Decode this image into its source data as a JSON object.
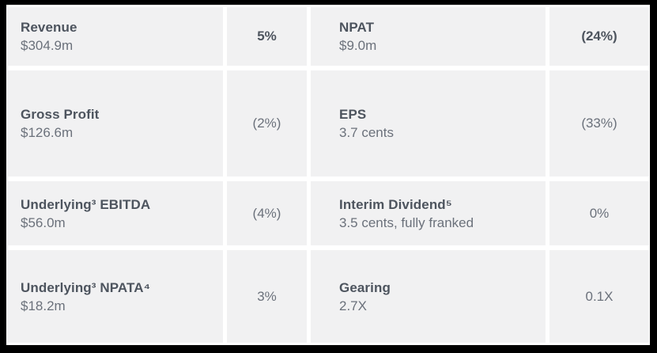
{
  "table": {
    "description": "Financial results summary table",
    "columns": [
      "metric",
      "change_vs_prior",
      "metric",
      "change_vs_prior"
    ],
    "rows": [
      {
        "cells": [
          {
            "label": "Revenue",
            "value": "$304.9m"
          },
          {
            "change": "5%",
            "emphasis": true
          },
          {
            "label": "NPAT",
            "value": "$9.0m"
          },
          {
            "change": "(24%)",
            "emphasis": true
          }
        ]
      },
      {
        "cells": [
          {
            "label": "Gross Profit",
            "value": "$126.6m"
          },
          {
            "change": "(2%)",
            "emphasis": false
          },
          {
            "label": "EPS",
            "value": "3.7 cents"
          },
          {
            "change": "(33%)",
            "emphasis": false
          }
        ]
      },
      {
        "cells": [
          {
            "label": "Underlying³ EBITDA",
            "value": "$56.0m"
          },
          {
            "change": "(4%)",
            "emphasis": false
          },
          {
            "label": "Interim Dividend⁵",
            "value": "3.5 cents, fully franked"
          },
          {
            "change": "0%",
            "emphasis": false
          }
        ]
      },
      {
        "cells": [
          {
            "label": "Underlying³ NPATA⁴",
            "value": "$18.2m"
          },
          {
            "change": "3%",
            "emphasis": false
          },
          {
            "label": "Gearing",
            "value": "2.7X"
          },
          {
            "change": "0.1X",
            "emphasis": false
          }
        ]
      }
    ],
    "colors": {
      "cell_background": "#f1f1f2",
      "label_text": "#4d545e",
      "value_text": "#6b717b",
      "frame_border": "#000000"
    }
  }
}
